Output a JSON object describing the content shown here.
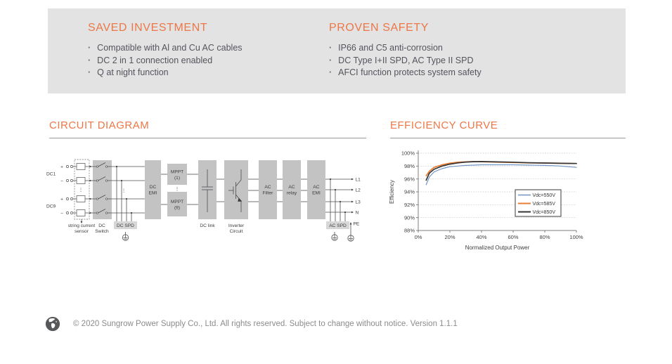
{
  "colors": {
    "accent": "#ED7746",
    "panel_bg": "#E3E3E4",
    "body_text": "#54555C",
    "footer_text": "#8C8C8E",
    "box_gray": "#C3C3C4"
  },
  "highlights": {
    "left": {
      "title": "SAVED INVESTMENT",
      "items": [
        "Compatible with Al and Cu AC cables",
        "DC 2 in 1 connection enabled",
        "Q at night function"
      ]
    },
    "right": {
      "title": "PROVEN SAFETY",
      "items": [
        "IP66 and C5 anti-corrosion",
        "DC Type I+II SPD, AC Type II SPD",
        "AFCI function protects system safety"
      ]
    }
  },
  "sections": {
    "circuit_title": "CIRCUIT DIAGRAM",
    "efficiency_title": "EFFICIENCY CURVE"
  },
  "circuit": {
    "labels": {
      "plus": "+",
      "minus": "−",
      "dc1": "DC1",
      "dc9": "DC9",
      "dots": "⋮",
      "sensor_1": "string current",
      "sensor_2": "sensor",
      "dc_switch_1": "DC",
      "dc_switch_2": "Switch",
      "dc_spd": "DC SPD",
      "dc_emi_1": "DC",
      "dc_emi_2": "EMI",
      "mppt1_1": "MPPT",
      "mppt1_2": "(1)",
      "mppt9_1": "MPPT",
      "mppt9_2": "(9)",
      "dc_link": "DC link",
      "inverter_1": "Inverter",
      "inverter_2": "Circuit",
      "ac_filter_1": "AC",
      "ac_filter_2": "Filter",
      "ac_relay_1": "AC",
      "ac_relay_2": "relay",
      "ac_emi_1": "AC",
      "ac_emi_2": "EMI",
      "ac_spd": "AC SPD",
      "out_l1": "L1",
      "out_l2": "L2",
      "out_l3": "L3",
      "out_n": "N",
      "pe": "PE"
    }
  },
  "chart_data": {
    "type": "line",
    "title": "",
    "xlabel": "Normalized Output Power",
    "ylabel": "Efficiency",
    "xlim": [
      0,
      100
    ],
    "ylim": [
      88,
      100
    ],
    "x_ticks": [
      "0%",
      "20%",
      "40%",
      "60%",
      "80%",
      "100%"
    ],
    "y_ticks": [
      "88%",
      "90%",
      "92%",
      "94%",
      "96%",
      "98%",
      "100%"
    ],
    "grid": "horizontal-dotted",
    "legend_position": "middle-right",
    "x": [
      5,
      7,
      10,
      15,
      20,
      25,
      30,
      35,
      40,
      50,
      60,
      70,
      80,
      90,
      100
    ],
    "series": [
      {
        "name": "Vdc=550V",
        "color": "#7295C5",
        "width": 1.2,
        "values": [
          95.1,
          96.3,
          97.1,
          97.6,
          97.9,
          98.0,
          98.1,
          98.15,
          98.2,
          98.2,
          98.2,
          98.15,
          98.1,
          98.0,
          97.8
        ]
      },
      {
        "name": "Vdc=585V",
        "color": "#ED7D31",
        "width": 1.7,
        "values": [
          96.5,
          97.2,
          97.8,
          98.2,
          98.45,
          98.6,
          98.65,
          98.7,
          98.68,
          98.6,
          98.55,
          98.5,
          98.47,
          98.43,
          98.4
        ]
      },
      {
        "name": "Vdc=850V",
        "color": "#363636",
        "width": 1.7,
        "values": [
          95.8,
          96.9,
          97.5,
          98.0,
          98.3,
          98.5,
          98.62,
          98.68,
          98.7,
          98.65,
          98.6,
          98.52,
          98.47,
          98.43,
          98.4
        ]
      }
    ]
  },
  "footer": {
    "text": "© 2020 Sungrow Power Supply Co., Ltd. All rights reserved. Subject to change without notice. Version 1.1.1"
  }
}
